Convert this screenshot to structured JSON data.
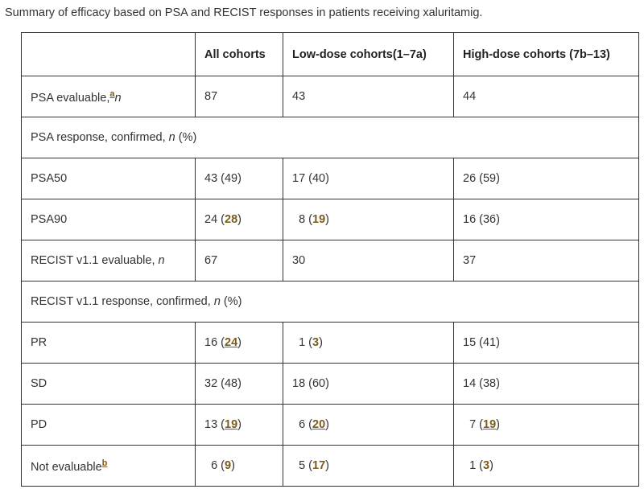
{
  "caption": "Summary of efficacy based on PSA and RECIST responses in patients receiving xaluritamig.",
  "header": {
    "blank": "",
    "all": "All cohorts",
    "low": "Low-dose cohorts(1–7a)",
    "high": "High-dose cohorts (7b–13)"
  },
  "rows": {
    "psa_evaluable": {
      "label": "PSA evaluable,",
      "footnote": "a",
      "n": "n",
      "all": "87",
      "low": "43",
      "high": "44"
    },
    "psa_response": {
      "label": "PSA response, confirmed, ",
      "n": "n",
      "suffix": " (%)"
    },
    "psa50": {
      "label": "PSA50",
      "all": "43 (49)",
      "low": "17 (40)",
      "high": "26 (59)"
    },
    "psa90": {
      "label": "PSA90",
      "all_count": "24",
      "all_pct": "28",
      "low_count": "8",
      "low_pct": "19",
      "high": "16 (36)"
    },
    "recist_evaluable": {
      "label": "RECIST v1.1 evaluable, ",
      "n": "n",
      "all": "67",
      "low": "30",
      "high": "37"
    },
    "recist_response": {
      "label": "RECIST v1.1 response, confirmed, ",
      "n": "n",
      "suffix": " (%)"
    },
    "pr": {
      "label": "PR",
      "all_count": "16",
      "all_pct": "24",
      "low_count": "1",
      "low_pct": "3",
      "high": "15 (41)"
    },
    "sd": {
      "label": "SD",
      "all": "32 (48)",
      "low": "18 (60)",
      "high": "14 (38)"
    },
    "pd": {
      "label": "PD",
      "all_count": "13",
      "all_pct": "19",
      "low_count": "6",
      "low_pct": "20",
      "high_count": "7",
      "high_pct": "19"
    },
    "not_evaluable": {
      "label": "Not evaluable",
      "footnote": "b",
      "all_count": "6",
      "all_pct": "9",
      "low_count": "5",
      "low_pct": "17",
      "high_count": "1",
      "high_pct": "3"
    }
  },
  "colors": {
    "text": "#333333",
    "border": "#333333",
    "reference": "#7a5c1c"
  }
}
